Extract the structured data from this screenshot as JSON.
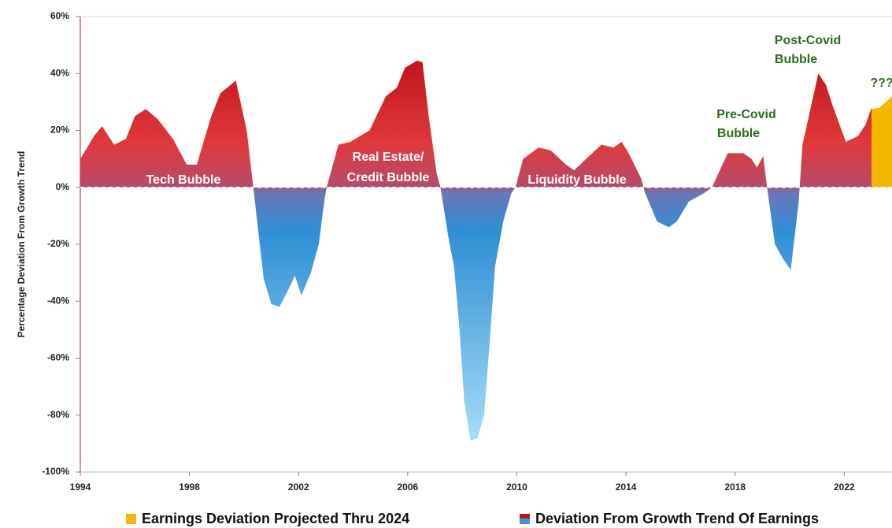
{
  "chart_data": {
    "type": "area",
    "y_label": "Percentage Deviation From Growth Trend",
    "xlim": [
      1994,
      2023.75
    ],
    "xticks": [
      1994,
      1998,
      2002,
      2006,
      2010,
      2014,
      2018,
      2022
    ],
    "ylim": [
      -100,
      60
    ],
    "yticks": [
      {
        "value": -100,
        "label": "-100%"
      },
      {
        "value": -80,
        "label": "-80%"
      },
      {
        "value": -60,
        "label": "-60%"
      },
      {
        "value": -40,
        "label": "-40%"
      },
      {
        "value": -20,
        "label": "-20%"
      },
      {
        "value": 0,
        "label": "0%"
      },
      {
        "value": 20,
        "label": "20%"
      },
      {
        "value": 40,
        "label": "40%"
      },
      {
        "value": 60,
        "label": "60%"
      }
    ],
    "annotations": [
      "Tech Bubble",
      "Real Estate/",
      "Credit Bubble",
      "Liquidity Bubble",
      "Pre-Covid",
      "Bubble",
      "Post-Covid",
      "Bubble",
      "???"
    ],
    "series": [
      {
        "name": "Earnings Deviation Projected Thru 2024",
        "color": "#f5b800",
        "x": [
          2023.0,
          2023.3,
          2023.75
        ],
        "values": [
          27.5,
          28,
          32
        ]
      },
      {
        "name": "Deviation From Growth Trend Of Earnings",
        "color": "gradient",
        "x": [
          1994.0,
          1994.5,
          1994.8,
          1995.24,
          1995.67,
          1996.0,
          1996.4,
          1996.83,
          1997.4,
          1997.9,
          1998.27,
          1998.8,
          1999.13,
          1999.7,
          2000.1,
          2000.34,
          2000.72,
          2001.0,
          2001.3,
          2001.67,
          2001.87,
          2002.1,
          2002.45,
          2002.74,
          2002.94,
          2003.03,
          2003.46,
          2003.9,
          2004.6,
          2005.2,
          2005.6,
          2005.9,
          2006.34,
          2006.54,
          2006.77,
          2007.06,
          2007.2,
          2007.5,
          2007.7,
          2007.9,
          2008.07,
          2008.3,
          2008.56,
          2008.8,
          2009.0,
          2009.2,
          2009.5,
          2009.8,
          2009.95,
          2010.23,
          2010.8,
          2011.24,
          2011.8,
          2012.1,
          2012.54,
          2013.1,
          2013.55,
          2013.84,
          2014.1,
          2014.56,
          2014.7,
          2015.14,
          2015.57,
          2015.86,
          2016.3,
          2016.87,
          2017.15,
          2017.73,
          2018.3,
          2018.6,
          2018.8,
          2019.03,
          2019.17,
          2019.46,
          2019.75,
          2020.04,
          2020.33,
          2020.47,
          2021.05,
          2021.33,
          2021.6,
          2022.06,
          2022.5,
          2022.78,
          2023.0
        ],
        "values": [
          10,
          18,
          21.5,
          15,
          17,
          25,
          27.5,
          24,
          17,
          8,
          8,
          25,
          33,
          37.5,
          20,
          0,
          -32,
          -41,
          -42,
          -35,
          -31,
          -38,
          -30,
          -20,
          -5,
          0,
          15,
          16,
          20,
          32,
          35,
          42,
          44.5,
          44,
          25,
          5,
          0,
          -18,
          -28,
          -50,
          -75,
          -89,
          -88,
          -80,
          -55,
          -28,
          -12,
          -2,
          0,
          10,
          14,
          13,
          8,
          6,
          10,
          15,
          14,
          16,
          12,
          3,
          -2,
          -12,
          -14,
          -12,
          -5,
          -2,
          0,
          12,
          12,
          10,
          7,
          11,
          0,
          -20,
          -25,
          -29,
          -5,
          15,
          40,
          36,
          28,
          16,
          18,
          22,
          28
        ]
      }
    ]
  }
}
